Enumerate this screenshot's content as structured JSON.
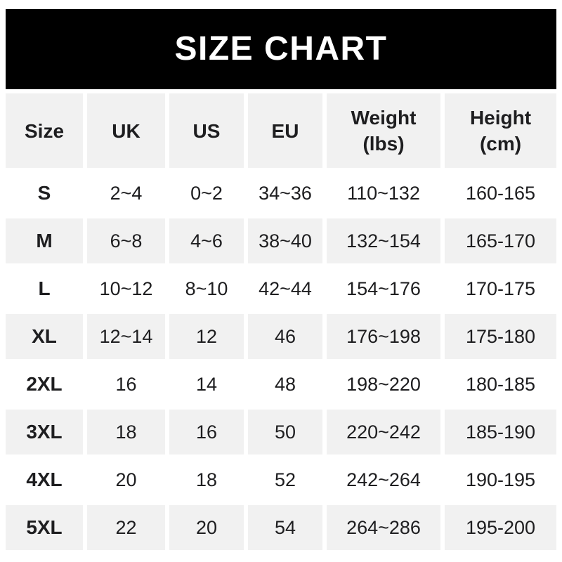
{
  "banner": {
    "title": "SIZE CHART"
  },
  "colors": {
    "banner_bg": "#000000",
    "banner_text": "#ffffff",
    "cell_gray": "#f1f1f1",
    "cell_white": "#ffffff",
    "text_dark": "#1e1e20"
  },
  "table": {
    "columns": [
      {
        "label": "Size",
        "sub": ""
      },
      {
        "label": "UK",
        "sub": ""
      },
      {
        "label": "US",
        "sub": ""
      },
      {
        "label": "EU",
        "sub": ""
      },
      {
        "label": "Weight",
        "sub": "(lbs)"
      },
      {
        "label": "Height",
        "sub": "(cm)"
      }
    ],
    "rows": [
      {
        "size": "S",
        "values": [
          "2~4",
          "0~2",
          "34~36",
          "110~132",
          "160-165"
        ],
        "shaded": false
      },
      {
        "size": "M",
        "values": [
          "6~8",
          "4~6",
          "38~40",
          "132~154",
          "165-170"
        ],
        "shaded": true
      },
      {
        "size": "L",
        "values": [
          "10~12",
          "8~10",
          "42~44",
          "154~176",
          "170-175"
        ],
        "shaded": false
      },
      {
        "size": "XL",
        "values": [
          "12~14",
          "12",
          "46",
          "176~198",
          "175-180"
        ],
        "shaded": true
      },
      {
        "size": "2XL",
        "values": [
          "16",
          "14",
          "48",
          "198~220",
          "180-185"
        ],
        "shaded": false
      },
      {
        "size": "3XL",
        "values": [
          "18",
          "16",
          "50",
          "220~242",
          "185-190"
        ],
        "shaded": true
      },
      {
        "size": "4XL",
        "values": [
          "20",
          "18",
          "52",
          "242~264",
          "190-195"
        ],
        "shaded": false
      },
      {
        "size": "5XL",
        "values": [
          "22",
          "20",
          "54",
          "264~286",
          "195-200"
        ],
        "shaded": true
      }
    ]
  },
  "chart_data": {
    "type": "table",
    "title": "SIZE CHART",
    "columns": [
      "Size",
      "UK",
      "US",
      "EU",
      "Weight (lbs)",
      "Height (cm)"
    ],
    "rows": [
      [
        "S",
        "2~4",
        "0~2",
        "34~36",
        "110~132",
        "160-165"
      ],
      [
        "M",
        "6~8",
        "4~6",
        "38~40",
        "132~154",
        "165-170"
      ],
      [
        "L",
        "10~12",
        "8~10",
        "42~44",
        "154~176",
        "170-175"
      ],
      [
        "XL",
        "12~14",
        "12",
        "46",
        "176~198",
        "175-180"
      ],
      [
        "2XL",
        "16",
        "14",
        "48",
        "198~220",
        "180-185"
      ],
      [
        "3XL",
        "18",
        "16",
        "50",
        "220~242",
        "185-190"
      ],
      [
        "4XL",
        "20",
        "18",
        "52",
        "242~264",
        "190-195"
      ],
      [
        "5XL",
        "22",
        "20",
        "54",
        "264~286",
        "195-200"
      ]
    ]
  }
}
